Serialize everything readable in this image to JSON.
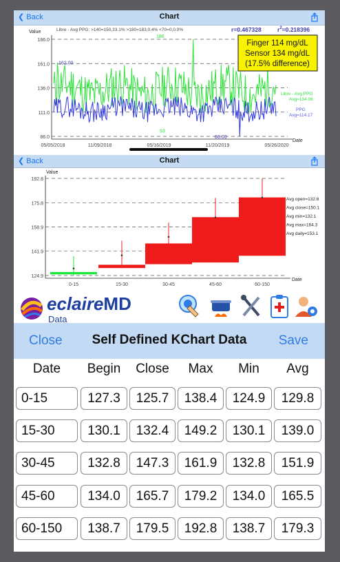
{
  "top_panel": {
    "back_label": "Back",
    "title": "Chart",
    "y_axis_label": "Value",
    "x_axis_label": "Date",
    "subtitle": "Libre - Avg PPG: >140=150,33.1%  >180=183,0.4%  <70=0,0.0%",
    "r_text": "r=0.467328",
    "r2_prefix": "r",
    "r2_sup": "2",
    "r2_value": "=0.218396",
    "callout_lines": [
      "Finger 114 mg/dL",
      "Sensor 134 mg/dL",
      "(17.5% difference)"
    ],
    "callout_bg": "#f8f200",
    "y_ticks": [
      "186.0",
      "161.0",
      "136.0",
      "111.0",
      "86.0"
    ],
    "x_ticks": [
      "05/05/2018",
      "11/09/2018",
      "05/16/2019",
      "11/20/2019",
      "05/26/2020"
    ],
    "annotations": {
      "left_peak": "162.00",
      "high_label": "186",
      "low_label": "93",
      "min_label": "86.00"
    },
    "legend_libre_line1": "Libre - Avg PPG",
    "legend_libre_line2": "Avg=134.06",
    "legend_ppg_line1": "PPG",
    "legend_ppg_line2": "Avg=114.17",
    "colors": {
      "libre": "#2ee23a",
      "ppg": "#2f36e0"
    },
    "chart_data": {
      "type": "line",
      "x": [
        "05/05/2018",
        "11/09/2018",
        "05/16/2019",
        "11/20/2019",
        "05/26/2020"
      ],
      "series": [
        {
          "name": "Libre - Avg PPG",
          "average": 134.06
        },
        {
          "name": "PPG",
          "average": 114.17
        }
      ],
      "ylim": [
        86.0,
        186.0
      ],
      "xlabel": "Date",
      "ylabel": "Value"
    }
  },
  "kchart_panel": {
    "back_label": "Back",
    "title": "Chart",
    "y_axis_label": "Value",
    "x_axis_label": "Date",
    "y_ticks": [
      "192.8",
      "175.8",
      "158.9",
      "141.9",
      "124.9"
    ],
    "stats": [
      "Avg open=132.6",
      "Avg close=150.1",
      "Avg min=132.1",
      "Avg max=164.3",
      "Avg daily=153.1"
    ],
    "chart_data": {
      "type": "bar",
      "subtype": "candlestick",
      "categories": [
        "0-15",
        "15-30",
        "30-45",
        "45-60",
        "60-150"
      ],
      "open": [
        127.3,
        130.1,
        132.8,
        134.0,
        138.7
      ],
      "close": [
        125.7,
        132.4,
        147.3,
        165.7,
        179.5
      ],
      "max": [
        138.4,
        149.2,
        161.9,
        179.2,
        192.8
      ],
      "min": [
        124.9,
        130.1,
        132.8,
        134.0,
        138.7
      ],
      "avg": [
        129.8,
        139.0,
        151.9,
        165.5,
        179.3
      ],
      "ylim": [
        124.9,
        192.8
      ],
      "xlabel": "Date",
      "ylabel": "Value",
      "colors": {
        "up": "#f01b1b",
        "down": "#19e83a"
      }
    }
  },
  "brand": {
    "logo_prefix": "eclaire",
    "logo_suffix": "MD",
    "logo_sub": "Data",
    "icons": [
      "touch-hand-icon",
      "cooking-pot-icon",
      "utensils-icon",
      "medical-clipboard-icon",
      "user-settings-icon"
    ]
  },
  "kdata": {
    "close_label": "Close",
    "title": "Self Defined KChart Data",
    "save_label": "Save",
    "headers": [
      "Date",
      "Begin",
      "Close",
      "Max",
      "Min",
      "Avg"
    ],
    "rows": [
      [
        "0-15",
        "127.3",
        "125.7",
        "138.4",
        "124.9",
        "129.8"
      ],
      [
        "15-30",
        "130.1",
        "132.4",
        "149.2",
        "130.1",
        "139.0"
      ],
      [
        "30-45",
        "132.8",
        "147.3",
        "161.9",
        "132.8",
        "151.9"
      ],
      [
        "45-60",
        "134.0",
        "165.7",
        "179.2",
        "134.0",
        "165.5"
      ],
      [
        "60-150",
        "138.7",
        "179.5",
        "192.8",
        "138.7",
        "179.3"
      ]
    ]
  }
}
